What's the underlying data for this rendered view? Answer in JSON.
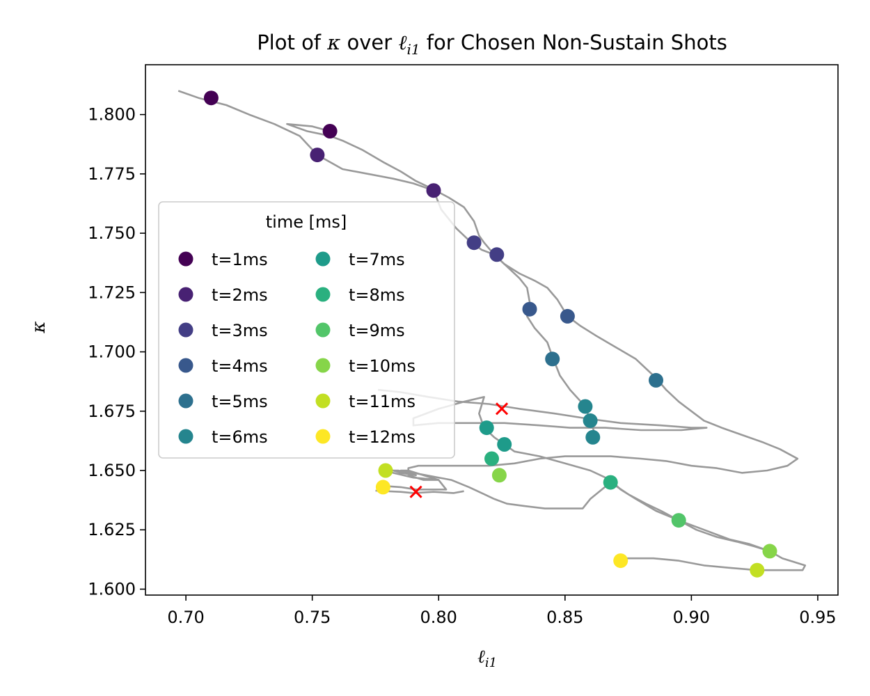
{
  "chart_data": {
    "type": "scatter",
    "title": {
      "before": "Plot of ",
      "kappa": "κ",
      "middle": " over ",
      "ell": "ℓ",
      "sub": "i1",
      "after": " for Chosen Non-Sustain Shots"
    },
    "xlabel": {
      "main": "ℓ",
      "sub": "i1"
    },
    "ylabel": "κ",
    "xlim": [
      0.684,
      0.958
    ],
    "ylim": [
      1.5975,
      1.821
    ],
    "xticks": [
      "0.70",
      "0.75",
      "0.80",
      "0.85",
      "0.90",
      "0.95"
    ],
    "yticks": [
      "1.600",
      "1.625",
      "1.650",
      "1.675",
      "1.700",
      "1.725",
      "1.750",
      "1.775",
      "1.800"
    ],
    "legend": {
      "title": "time [ms]",
      "placement": "center-left"
    },
    "trajectories": [
      [
        [
          0.697,
          1.81
        ],
        [
          0.705,
          1.807
        ],
        [
          0.716,
          1.804
        ],
        [
          0.725,
          1.8
        ],
        [
          0.735,
          1.796
        ],
        [
          0.745,
          1.791
        ],
        [
          0.752,
          1.783
        ],
        [
          0.762,
          1.777
        ],
        [
          0.772,
          1.775
        ],
        [
          0.782,
          1.773
        ],
        [
          0.79,
          1.771
        ],
        [
          0.798,
          1.768
        ],
        [
          0.801,
          1.76
        ],
        [
          0.807,
          1.752
        ],
        [
          0.812,
          1.747
        ],
        [
          0.817,
          1.743
        ],
        [
          0.822,
          1.741
        ],
        [
          0.826,
          1.737
        ],
        [
          0.832,
          1.733
        ],
        [
          0.838,
          1.73
        ],
        [
          0.843,
          1.727
        ],
        [
          0.847,
          1.722
        ],
        [
          0.851,
          1.715
        ],
        [
          0.856,
          1.711
        ],
        [
          0.862,
          1.707
        ],
        [
          0.87,
          1.702
        ],
        [
          0.878,
          1.697
        ],
        [
          0.886,
          1.689
        ],
        [
          0.89,
          1.684
        ],
        [
          0.895,
          1.679
        ],
        [
          0.9,
          1.675
        ],
        [
          0.905,
          1.671
        ],
        [
          0.912,
          1.668
        ],
        [
          0.92,
          1.665
        ],
        [
          0.928,
          1.662
        ],
        [
          0.935,
          1.659
        ],
        [
          0.942,
          1.655
        ],
        [
          0.938,
          1.652
        ],
        [
          0.93,
          1.65
        ],
        [
          0.92,
          1.649
        ],
        [
          0.91,
          1.651
        ],
        [
          0.9,
          1.652
        ],
        [
          0.89,
          1.654
        ],
        [
          0.88,
          1.655
        ],
        [
          0.868,
          1.656
        ],
        [
          0.858,
          1.656
        ],
        [
          0.85,
          1.656
        ],
        [
          0.84,
          1.655
        ],
        [
          0.83,
          1.653
        ],
        [
          0.82,
          1.652
        ],
        [
          0.81,
          1.652
        ],
        [
          0.8,
          1.652
        ],
        [
          0.792,
          1.652
        ],
        [
          0.788,
          1.651
        ],
        [
          0.788,
          1.648
        ],
        [
          0.794,
          1.646
        ],
        [
          0.8,
          1.646
        ],
        [
          0.79,
          1.647
        ],
        [
          0.778,
          1.65
        ],
        [
          0.779,
          1.651
        ],
        [
          0.785,
          1.649
        ],
        [
          0.791,
          1.648
        ],
        [
          0.784,
          1.65
        ],
        [
          0.778,
          1.65
        ]
      ],
      [
        [
          0.778,
          1.6435
        ],
        [
          0.785,
          1.643
        ],
        [
          0.791,
          1.642
        ],
        [
          0.798,
          1.642
        ],
        [
          0.803,
          1.642
        ],
        [
          0.8,
          1.646
        ],
        [
          0.788,
          1.65
        ],
        [
          0.785,
          1.65
        ],
        [
          0.795,
          1.648
        ],
        [
          0.805,
          1.646
        ],
        [
          0.812,
          1.643
        ],
        [
          0.818,
          1.64
        ],
        [
          0.822,
          1.638
        ]
      ],
      [
        [
          0.822,
          1.638
        ],
        [
          0.827,
          1.636
        ],
        [
          0.834,
          1.635
        ],
        [
          0.842,
          1.634
        ],
        [
          0.85,
          1.634
        ],
        [
          0.857,
          1.634
        ],
        [
          0.86,
          1.638
        ],
        [
          0.868,
          1.645
        ],
        [
          0.875,
          1.64
        ],
        [
          0.882,
          1.636
        ],
        [
          0.888,
          1.633
        ],
        [
          0.895,
          1.629
        ],
        [
          0.902,
          1.625
        ],
        [
          0.91,
          1.622
        ],
        [
          0.918,
          1.62
        ],
        [
          0.925,
          1.618
        ],
        [
          0.931,
          1.616
        ],
        [
          0.936,
          1.613
        ],
        [
          0.942,
          1.611
        ],
        [
          0.945,
          1.61
        ],
        [
          0.944,
          1.608
        ],
        [
          0.935,
          1.608
        ],
        [
          0.926,
          1.608
        ],
        [
          0.915,
          1.609
        ],
        [
          0.905,
          1.61
        ],
        [
          0.895,
          1.612
        ],
        [
          0.885,
          1.613
        ],
        [
          0.872,
          1.613
        ]
      ],
      [
        [
          0.757,
          1.793
        ],
        [
          0.75,
          1.795
        ],
        [
          0.74,
          1.796
        ],
        [
          0.748,
          1.793
        ],
        [
          0.757,
          1.791
        ],
        [
          0.762,
          1.789
        ],
        [
          0.77,
          1.785
        ],
        [
          0.778,
          1.78
        ],
        [
          0.785,
          1.776
        ],
        [
          0.791,
          1.772
        ],
        [
          0.797,
          1.769
        ],
        [
          0.804,
          1.765
        ],
        [
          0.81,
          1.761
        ],
        [
          0.814,
          1.755
        ],
        [
          0.816,
          1.749
        ],
        [
          0.818,
          1.746
        ],
        [
          0.822,
          1.741
        ],
        [
          0.828,
          1.735
        ],
        [
          0.832,
          1.731
        ],
        [
          0.835,
          1.727
        ],
        [
          0.836,
          1.721
        ],
        [
          0.835,
          1.715
        ],
        [
          0.838,
          1.71
        ],
        [
          0.843,
          1.704
        ],
        [
          0.845,
          1.698
        ],
        [
          0.848,
          1.69
        ],
        [
          0.852,
          1.684
        ],
        [
          0.858,
          1.677
        ],
        [
          0.86,
          1.671
        ],
        [
          0.862,
          1.665
        ],
        [
          0.861,
          1.664
        ]
      ],
      [
        [
          0.776,
          1.684
        ],
        [
          0.785,
          1.683
        ],
        [
          0.796,
          1.681
        ],
        [
          0.808,
          1.679
        ],
        [
          0.82,
          1.678
        ],
        [
          0.832,
          1.676
        ],
        [
          0.846,
          1.674
        ],
        [
          0.858,
          1.672
        ],
        [
          0.872,
          1.67
        ],
        [
          0.888,
          1.669
        ],
        [
          0.9,
          1.668
        ],
        [
          0.906,
          1.668
        ],
        [
          0.896,
          1.667
        ],
        [
          0.88,
          1.667
        ],
        [
          0.866,
          1.668
        ],
        [
          0.852,
          1.668
        ],
        [
          0.84,
          1.669
        ],
        [
          0.826,
          1.67
        ],
        [
          0.812,
          1.67
        ],
        [
          0.8,
          1.67
        ],
        [
          0.79,
          1.669
        ],
        [
          0.79,
          1.672
        ],
        [
          0.8,
          1.676
        ],
        [
          0.81,
          1.679
        ],
        [
          0.818,
          1.681
        ],
        [
          0.816,
          1.674
        ],
        [
          0.818,
          1.668
        ],
        [
          0.822,
          1.664
        ],
        [
          0.826,
          1.661
        ],
        [
          0.83,
          1.658
        ],
        [
          0.84,
          1.656
        ],
        [
          0.85,
          1.653
        ],
        [
          0.86,
          1.65
        ],
        [
          0.868,
          1.646
        ],
        [
          0.872,
          1.642
        ],
        [
          0.878,
          1.638
        ],
        [
          0.886,
          1.633
        ],
        [
          0.895,
          1.629
        ],
        [
          0.905,
          1.625
        ],
        [
          0.915,
          1.621
        ],
        [
          0.923,
          1.619
        ],
        [
          0.931,
          1.616
        ]
      ],
      [
        [
          0.775,
          1.6415
        ],
        [
          0.785,
          1.641
        ],
        [
          0.79,
          1.6405
        ],
        [
          0.798,
          1.641
        ],
        [
          0.806,
          1.6405
        ],
        [
          0.81,
          1.6413
        ]
      ]
    ],
    "series": [
      {
        "name": "t=1ms",
        "color": "#440154",
        "points": [
          [
            0.71,
            1.807
          ],
          [
            0.757,
            1.793
          ]
        ]
      },
      {
        "name": "t=2ms",
        "color": "#482173",
        "points": [
          [
            0.752,
            1.783
          ],
          [
            0.798,
            1.768
          ]
        ]
      },
      {
        "name": "t=3ms",
        "color": "#433e85",
        "points": [
          [
            0.814,
            1.746
          ],
          [
            0.823,
            1.741
          ]
        ]
      },
      {
        "name": "t=4ms",
        "color": "#38588c",
        "points": [
          [
            0.836,
            1.718
          ],
          [
            0.851,
            1.715
          ]
        ]
      },
      {
        "name": "t=5ms",
        "color": "#2d708e",
        "points": [
          [
            0.845,
            1.697
          ],
          [
            0.886,
            1.688
          ]
        ]
      },
      {
        "name": "t=6ms",
        "color": "#25858e",
        "points": [
          [
            0.858,
            1.677
          ],
          [
            0.86,
            1.671
          ],
          [
            0.861,
            1.664
          ]
        ]
      },
      {
        "name": "t=7ms",
        "color": "#1e9b8a",
        "points": [
          [
            0.819,
            1.668
          ],
          [
            0.826,
            1.661
          ]
        ]
      },
      {
        "name": "t=8ms",
        "color": "#2ab07f",
        "points": [
          [
            0.821,
            1.655
          ],
          [
            0.868,
            1.645
          ]
        ]
      },
      {
        "name": "t=9ms",
        "color": "#52c569",
        "points": [
          [
            0.895,
            1.629
          ]
        ]
      },
      {
        "name": "t=10ms",
        "color": "#86d549",
        "points": [
          [
            0.824,
            1.648
          ],
          [
            0.931,
            1.616
          ]
        ]
      },
      {
        "name": "t=11ms",
        "color": "#c2df23",
        "points": [
          [
            0.779,
            1.65
          ],
          [
            0.926,
            1.608
          ]
        ]
      },
      {
        "name": "t=12ms",
        "color": "#fde725",
        "points": [
          [
            0.778,
            1.643
          ],
          [
            0.872,
            1.612
          ]
        ]
      }
    ],
    "markers_x": {
      "color": "#ff0000",
      "points": [
        [
          0.825,
          1.676
        ],
        [
          0.791,
          1.641
        ]
      ]
    },
    "trajectory_color": "#999999"
  }
}
